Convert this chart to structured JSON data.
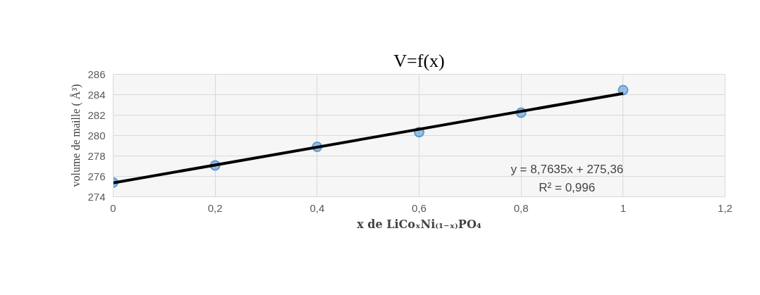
{
  "chart_data": {
    "type": "scatter",
    "title": "V=f(x)",
    "xlabel": "x de LiCoₓNi₍₁₋ₓ₎PO₄",
    "ylabel": "volume de maille ( Å³)",
    "series": [
      {
        "marker": "circle",
        "color": "#5b9bd5",
        "x": [
          0,
          0.2,
          0.4,
          0.6,
          0.8,
          1
        ],
        "values": [
          275.4,
          277.07,
          278.9,
          280.33,
          282.24,
          284.45
        ]
      },
      {
        "type": "line",
        "marker": "none",
        "color": "#000000",
        "x": [
          0,
          1
        ],
        "values": [
          275.36,
          284.12
        ]
      }
    ],
    "annotations": [
      "y = 8,7635x + 275,36",
      "R² = 0,996"
    ],
    "xlim": [
      0,
      1.2
    ],
    "xticks": [
      {
        "value": 0,
        "label": "0"
      },
      {
        "value": 0.2,
        "label": "0,2"
      },
      {
        "value": 0.4,
        "label": "0,4"
      },
      {
        "value": 0.6,
        "label": "0,6"
      },
      {
        "value": 0.8,
        "label": "0,8"
      },
      {
        "value": 1,
        "label": "1"
      },
      {
        "value": 1.2,
        "label": "1,2"
      }
    ],
    "ylim": [
      274,
      286
    ],
    "yticks": [
      274,
      276,
      278,
      280,
      282,
      284,
      286
    ],
    "grid": true,
    "line_style": "solid"
  }
}
